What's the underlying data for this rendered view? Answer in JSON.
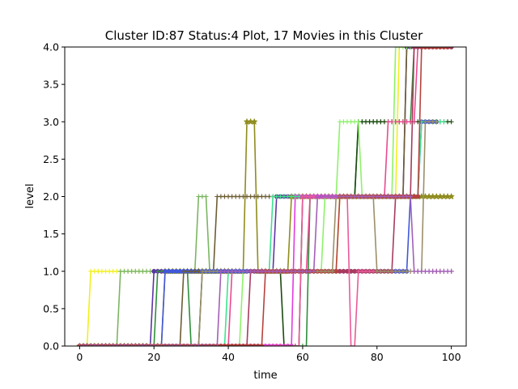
{
  "chart_data": {
    "type": "line",
    "title": "Cluster ID:87 Status:4 Plot, 17 Movies in this Cluster",
    "xlabel": "time",
    "ylabel": "level",
    "xlim": [
      -4,
      104
    ],
    "ylim": [
      0,
      4
    ],
    "xticks": [
      0,
      20,
      40,
      60,
      80,
      100
    ],
    "yticks": [
      0.0,
      0.5,
      1.0,
      1.5,
      2.0,
      2.5,
      3.0,
      3.5,
      4.0
    ],
    "xtick_labels": [
      "0",
      "20",
      "40",
      "60",
      "80",
      "100"
    ],
    "ytick_labels": [
      "0.0",
      "0.5",
      "1.0",
      "1.5",
      "2.0",
      "2.5",
      "3.0",
      "3.5",
      "4.0"
    ],
    "grid": false,
    "legend": "none",
    "series": [
      {
        "color": "#f2ef1d",
        "marker": "plus",
        "steps": [
          [
            0,
            0
          ],
          [
            3,
            1
          ],
          [
            70,
            2
          ],
          [
            86,
            4
          ],
          [
            100,
            4
          ]
        ]
      },
      {
        "color": "#7bb661",
        "marker": "plus",
        "steps": [
          [
            0,
            0
          ],
          [
            11,
            1
          ],
          [
            32,
            2
          ],
          [
            35,
            1
          ],
          [
            100,
            1
          ]
        ]
      },
      {
        "color": "#5b35a6",
        "marker": "circle",
        "steps": [
          [
            0,
            0
          ],
          [
            20,
            1
          ],
          [
            53,
            2
          ],
          [
            88,
            4
          ],
          [
            100,
            4
          ]
        ]
      },
      {
        "color": "#2f8f3b",
        "marker": "plus",
        "steps": [
          [
            0,
            0
          ],
          [
            21,
            1
          ],
          [
            30,
            0
          ],
          [
            62,
            2
          ],
          [
            75,
            3
          ],
          [
            90,
            4
          ],
          [
            100,
            4
          ]
        ]
      },
      {
        "color": "#8f8c1e",
        "marker": "star",
        "steps": [
          [
            0,
            0
          ],
          [
            23,
            1
          ],
          [
            45,
            3
          ],
          [
            48,
            1
          ],
          [
            57,
            2
          ],
          [
            100,
            2
          ]
        ]
      },
      {
        "color": "#4057d8",
        "marker": "circle",
        "steps": [
          [
            0,
            0
          ],
          [
            23,
            1
          ],
          [
            89,
            2
          ],
          [
            92,
            3
          ],
          [
            96,
            3
          ]
        ]
      },
      {
        "color": "#e03ce0",
        "marker": "circle",
        "steps": [
          [
            0,
            0
          ],
          [
            58,
            2
          ],
          [
            88,
            2
          ]
        ]
      },
      {
        "color": "#6d5d33",
        "marker": "plus",
        "steps": [
          [
            0,
            0
          ],
          [
            28,
            1
          ],
          [
            37,
            2
          ],
          [
            82,
            2
          ],
          [
            88,
            4
          ],
          [
            100,
            4
          ]
        ]
      },
      {
        "color": "#1a4a0d",
        "marker": "plus",
        "steps": [
          [
            0,
            0
          ],
          [
            33,
            1
          ],
          [
            55,
            0
          ],
          [
            60,
            2
          ],
          [
            75,
            3
          ],
          [
            100,
            3
          ]
        ]
      },
      {
        "color": "#3de38f",
        "marker": "plus",
        "steps": [
          [
            0,
            0
          ],
          [
            40,
            1
          ],
          [
            52,
            2
          ],
          [
            83,
            2
          ],
          [
            92,
            3
          ],
          [
            98,
            3
          ]
        ]
      },
      {
        "color": "#e84a8f",
        "marker": "plus",
        "steps": [
          [
            0,
            0
          ],
          [
            41,
            1
          ],
          [
            62,
            2
          ],
          [
            83,
            3
          ],
          [
            91,
            4
          ],
          [
            96,
            4
          ]
        ]
      },
      {
        "color": "#8ef26a",
        "marker": "plus",
        "steps": [
          [
            0,
            0
          ],
          [
            44,
            1
          ],
          [
            66,
            2
          ],
          [
            70,
            3
          ],
          [
            76,
            2
          ],
          [
            85,
            4
          ],
          [
            100,
            4
          ]
        ]
      },
      {
        "color": "#a83a5e",
        "marker": "circle",
        "steps": [
          [
            0,
            0
          ],
          [
            46,
            1
          ],
          [
            85,
            2
          ],
          [
            90,
            4
          ],
          [
            100,
            4
          ]
        ]
      },
      {
        "color": "#eb5a9a",
        "marker": "plus",
        "steps": [
          [
            0,
            0
          ],
          [
            60,
            2
          ],
          [
            73,
            0
          ],
          [
            75,
            1
          ],
          [
            100,
            1
          ]
        ]
      },
      {
        "color": "#b5423d",
        "marker": "circle",
        "steps": [
          [
            0,
            0
          ],
          [
            50,
            1
          ],
          [
            70,
            2
          ],
          [
            92,
            4
          ],
          [
            99,
            4
          ]
        ]
      },
      {
        "color": "#9b8f6a",
        "marker": "plus",
        "steps": [
          [
            0,
            0
          ],
          [
            33,
            1
          ],
          [
            69,
            2
          ],
          [
            80,
            1
          ],
          [
            93,
            3
          ],
          [
            96,
            3
          ]
        ]
      },
      {
        "color": "#a25fb8",
        "marker": "plus",
        "steps": [
          [
            0,
            0
          ],
          [
            38,
            1
          ],
          [
            64,
            2
          ],
          [
            88,
            2
          ],
          [
            90,
            1
          ],
          [
            100,
            1
          ]
        ]
      }
    ]
  }
}
